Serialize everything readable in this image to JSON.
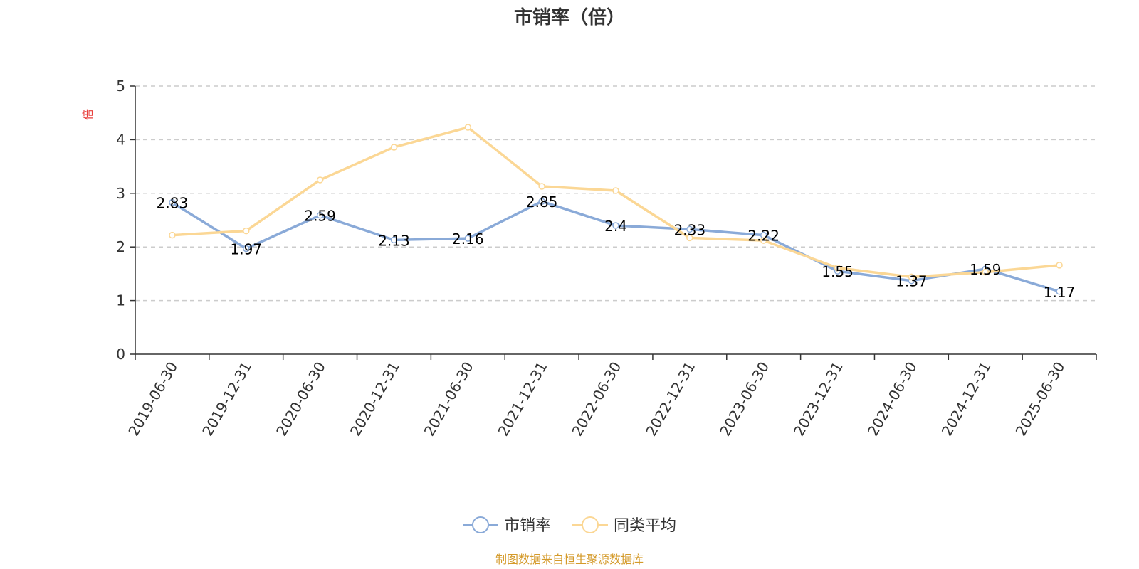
{
  "chart_data": {
    "type": "line",
    "title": "市销率（倍）",
    "ylabel": "倍",
    "ylim": [
      0,
      5
    ],
    "yticks": [
      0,
      1,
      2,
      3,
      4,
      5
    ],
    "grid": true,
    "legend_position": "bottom",
    "categories": [
      "2019-06-30",
      "2019-12-31",
      "2020-06-30",
      "2020-12-31",
      "2021-06-30",
      "2021-12-31",
      "2022-06-30",
      "2022-12-31",
      "2023-06-30",
      "2023-12-31",
      "2024-06-30",
      "2024-12-31",
      "2025-06-30"
    ],
    "series": [
      {
        "name": "市销率",
        "color": "#8aaad8",
        "values": [
          2.83,
          1.97,
          2.59,
          2.13,
          2.16,
          2.85,
          2.4,
          2.33,
          2.22,
          1.55,
          1.37,
          1.59,
          1.17
        ],
        "labels": [
          "2.83",
          "1.97",
          "2.59",
          "2.13",
          "2.16",
          "2.85",
          "2.4",
          "2.33",
          "2.22",
          "1.55",
          "1.37",
          "1.59",
          "1.17"
        ]
      },
      {
        "name": "同类平均",
        "color": "#fbd795",
        "values": [
          2.22,
          2.3,
          3.25,
          3.86,
          4.23,
          3.13,
          3.05,
          2.17,
          2.12,
          1.61,
          1.44,
          1.53,
          1.66
        ]
      }
    ],
    "source": "制图数据来自恒生聚源数据库"
  },
  "colors": {
    "axis": "#333333",
    "grid": "#cccccc",
    "unit_label": "#e8413e",
    "source_text": "#d49a2a"
  }
}
